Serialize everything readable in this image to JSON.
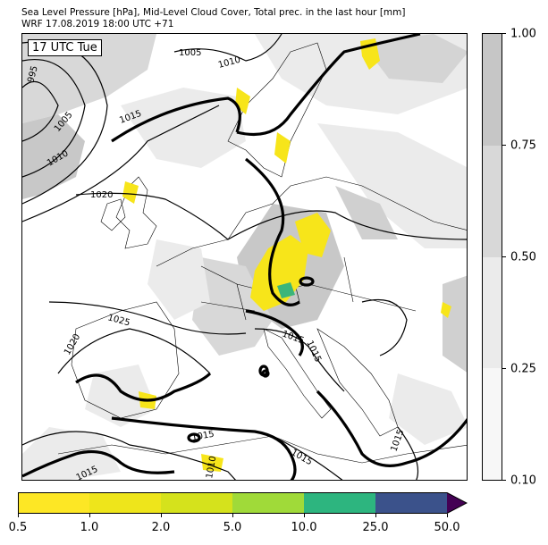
{
  "header": {
    "title": "Sea Level Pressure [hPa], Mid-Level Cloud Cover, Total prec. in the last hour [mm]",
    "subtitle": "WRF 17.08.2019 18:00 UTC +71"
  },
  "map": {
    "time_label": "17 UTC Tue",
    "isobar_labels": [
      "995",
      "1005",
      "1010",
      "1005",
      "1010",
      "1015",
      "1020",
      "1025",
      "1020",
      "1015",
      "1015",
      "1015",
      "1015",
      "1015",
      "1015",
      "1010"
    ],
    "colors": {
      "cloud_light": "#ebebeb",
      "cloud_mid": "#d4d4d4",
      "cloud_dark": "#c4c4c4",
      "precip_yellow": "#f7e51a",
      "precip_green": "#3bb57a",
      "coastline": "#000000"
    }
  },
  "cloud_colorbar": {
    "ticks": [
      "0.10",
      "0.25",
      "0.50",
      "0.75",
      "1.00"
    ],
    "colors": [
      "#f7f7f7",
      "#ebebeb",
      "#d8d8d8",
      "#c6c6c6"
    ]
  },
  "precip_colorbar": {
    "ticks": [
      "0.5",
      "1.0",
      "2.0",
      "5.0",
      "10.0",
      "25.0",
      "50.0"
    ],
    "colors": [
      "#fde725",
      "#eee51b",
      "#d5e21c",
      "#a0da39",
      "#2db57f",
      "#3b528b",
      "#440154"
    ]
  }
}
